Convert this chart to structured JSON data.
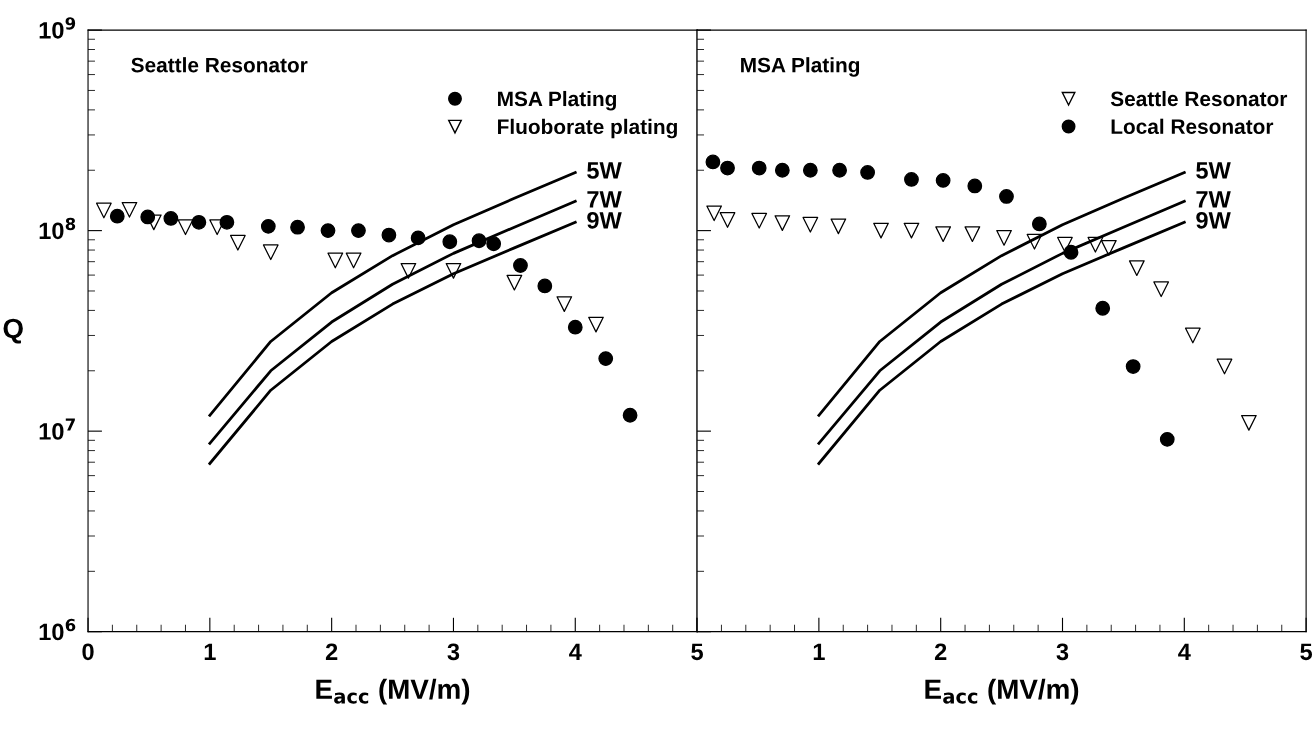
{
  "chart_data": [
    {
      "type": "scatter",
      "title": "Seattle Resonator",
      "xlabel": "E$_{acc}$ (MV/m)",
      "ylabel": "Q",
      "log": "y",
      "grid": false,
      "legend": "top right",
      "xlim": [
        0,
        5
      ],
      "xticks": [
        0,
        1,
        2,
        3,
        4,
        5
      ],
      "ylim": [
        1000000,
        1000000000
      ],
      "yticks": [
        {
          "value": 1000000,
          "label": "10$^{6}$"
        },
        {
          "value": 10000000,
          "label": "10$^{7}$"
        },
        {
          "value": 100000000,
          "label": "10$^{8}$"
        },
        {
          "value": 1000000000,
          "label": "10$^{9}$"
        }
      ],
      "series": [
        {
          "name": "MSA Plating",
          "marker": "circle",
          "color": "#000000",
          "x": [
            0.24,
            0.49,
            0.68,
            0.91,
            1.14,
            1.48,
            1.72,
            1.97,
            2.22,
            2.47,
            2.71,
            2.97,
            3.21,
            3.33,
            3.55,
            3.75,
            4.0,
            4.25,
            4.45
          ],
          "values": [
            118000000,
            117000000,
            115000000,
            110000000,
            110000000,
            105000000,
            104000000,
            100000000,
            100000000,
            95000000,
            92000000,
            88000000,
            89000000,
            86000000,
            67000000,
            53000000,
            33000000,
            23000000,
            12000000
          ]
        },
        {
          "name": "Fluoborate plating",
          "marker": "triangle",
          "color": "#000000",
          "x": [
            0.13,
            0.34,
            0.54,
            0.8,
            1.06,
            1.23,
            1.5,
            2.03,
            2.18,
            2.63,
            3.0,
            3.5,
            3.91,
            4.17
          ],
          "values": [
            126000000,
            127000000,
            110000000,
            104000000,
            104000000,
            87000000,
            78000000,
            71000000,
            71000000,
            63000000,
            63000000,
            55000000,
            43000000,
            34000000
          ]
        },
        {
          "name": "5W",
          "type": "line",
          "color": "#000000",
          "x": [
            1,
            1.5,
            2,
            2.5,
            3,
            3.5,
            4
          ],
          "values": [
            12000000,
            28000000,
            49000000,
            75000000,
            107000000,
            145000000,
            195000000
          ]
        },
        {
          "name": "7W",
          "type": "line",
          "color": "#000000",
          "x": [
            1,
            1.5,
            2,
            2.5,
            3,
            3.5,
            4
          ],
          "values": [
            8700000,
            20000000,
            35000000,
            54000000,
            77000000,
            104000000,
            140000000
          ]
        },
        {
          "name": "9W",
          "type": "line",
          "color": "#000000",
          "x": [
            1,
            1.5,
            2,
            2.5,
            3,
            3.5,
            4
          ],
          "values": [
            6900000,
            16000000,
            28000000,
            43000000,
            61000000,
            82000000,
            110000000
          ]
        }
      ]
    },
    {
      "type": "scatter",
      "title": "MSA Plating",
      "xlabel": "E$_{acc}$ (MV/m)",
      "log": "y",
      "grid": false,
      "legend": "top right",
      "tick_labels": "x",
      "xlim": [
        0,
        5
      ],
      "xticks": [
        {
          "value": 0,
          "label": null
        },
        1,
        2,
        3,
        4,
        5
      ],
      "ylim": [
        1000000,
        1000000000
      ],
      "series": [
        {
          "name": "Seattle Resonator",
          "marker": "triangle",
          "color": "#000000",
          "x": [
            0.14,
            0.25,
            0.51,
            0.7,
            0.93,
            1.16,
            1.51,
            1.76,
            2.02,
            2.26,
            2.52,
            2.77,
            3.02,
            3.27,
            3.38,
            3.61,
            3.81,
            4.07,
            4.33,
            4.53
          ],
          "values": [
            122000000,
            113000000,
            112000000,
            109000000,
            107000000,
            105000000,
            100000000,
            100000000,
            96000000,
            96000000,
            92000000,
            88000000,
            85000000,
            85000000,
            82000000,
            65000000,
            51000000,
            30000000,
            21000000,
            11000000
          ]
        },
        {
          "name": "Local Resonator",
          "marker": "circle",
          "color": "#000000",
          "x": [
            0.13,
            0.25,
            0.51,
            0.7,
            0.93,
            1.17,
            1.4,
            1.76,
            2.02,
            2.28,
            2.54,
            2.81,
            3.07,
            3.33,
            3.58,
            3.86
          ],
          "values": [
            220000000,
            205000000,
            205000000,
            200000000,
            200000000,
            200000000,
            195000000,
            180000000,
            178000000,
            167000000,
            148000000,
            108000000,
            78000000,
            41000000,
            21000000,
            9100000
          ]
        },
        {
          "name": "5W",
          "type": "line",
          "color": "#000000",
          "x": [
            1,
            1.5,
            2,
            2.5,
            3,
            3.5,
            4
          ],
          "values": [
            12000000,
            28000000,
            49000000,
            75000000,
            107000000,
            145000000,
            195000000
          ]
        },
        {
          "name": "7W",
          "type": "line",
          "color": "#000000",
          "x": [
            1,
            1.5,
            2,
            2.5,
            3,
            3.5,
            4
          ],
          "values": [
            8700000,
            20000000,
            35000000,
            54000000,
            77000000,
            104000000,
            140000000
          ]
        },
        {
          "name": "9W",
          "type": "line",
          "color": "#000000",
          "x": [
            1,
            1.5,
            2,
            2.5,
            3,
            3.5,
            4
          ],
          "values": [
            6900000,
            16000000,
            28000000,
            43000000,
            61000000,
            82000000,
            110000000
          ]
        }
      ]
    }
  ]
}
